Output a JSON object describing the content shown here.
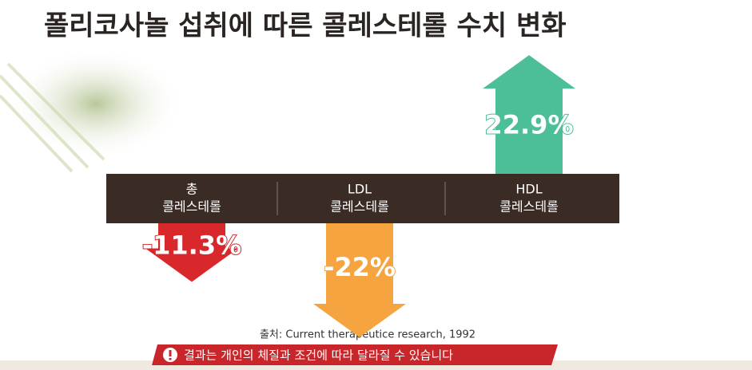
{
  "chart_data": {
    "type": "arrow",
    "title": "폴리코사놀 섭취에 따른 콜레스테롤 수치 변화",
    "categories": [
      [
        "총",
        "콜레스테롤"
      ],
      [
        "LDL",
        "콜레스테롤"
      ],
      [
        "HDL",
        "콜레스테롤"
      ]
    ],
    "values": [
      -11.3,
      -22,
      22.9
    ],
    "value_labels": [
      "-11.3%",
      "-22%",
      "22.9%"
    ],
    "colors": [
      "#d8282c",
      "#f6a440",
      "#4cbf99"
    ],
    "source": "출처: Current therapeutice research, 1992",
    "notice": "결과는 개인의 체질과 조건에 따라 달라질 수 있습니다"
  }
}
